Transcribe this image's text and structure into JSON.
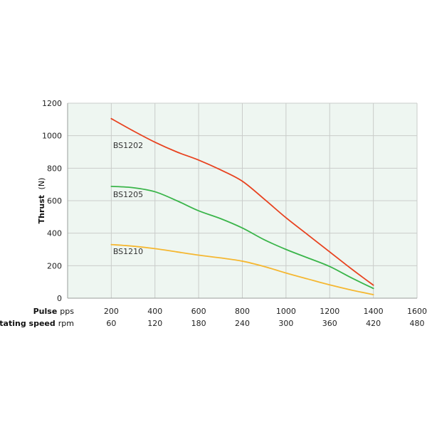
{
  "chart_data": {
    "type": "line",
    "ylabel_bold": "Thrust",
    "ylabel_unit": "(N)",
    "ylim": [
      0,
      1200
    ],
    "y_ticks": [
      "1200",
      "1000",
      "800",
      "600",
      "400",
      "200",
      "0"
    ],
    "x_rows": [
      {
        "title_bold": "Pulse",
        "unit": "pps",
        "ticks": [
          "200",
          "400",
          "600",
          "800",
          "1000",
          "1200",
          "1400",
          "1600"
        ]
      },
      {
        "title_bold": "Rotating speed",
        "unit": "rpm",
        "ticks": [
          "60",
          "120",
          "180",
          "240",
          "300",
          "360",
          "420",
          "480"
        ]
      }
    ],
    "xlim": [
      0,
      1600
    ],
    "grid": true,
    "background_color": "#eef6f1",
    "series": [
      {
        "name": "BS1202",
        "color": "#e8421f",
        "points": [
          [
            200,
            1105
          ],
          [
            300,
            1030
          ],
          [
            400,
            960
          ],
          [
            500,
            900
          ],
          [
            600,
            850
          ],
          [
            700,
            790
          ],
          [
            800,
            720
          ],
          [
            900,
            610
          ],
          [
            1000,
            495
          ],
          [
            1100,
            390
          ],
          [
            1200,
            285
          ],
          [
            1300,
            180
          ],
          [
            1400,
            80
          ]
        ]
      },
      {
        "name": "BS1205",
        "color": "#3ab54a",
        "points": [
          [
            200,
            688
          ],
          [
            300,
            680
          ],
          [
            400,
            655
          ],
          [
            500,
            600
          ],
          [
            600,
            538
          ],
          [
            700,
            490
          ],
          [
            800,
            432
          ],
          [
            900,
            360
          ],
          [
            1000,
            300
          ],
          [
            1100,
            248
          ],
          [
            1200,
            195
          ],
          [
            1300,
            125
          ],
          [
            1400,
            60
          ]
        ]
      },
      {
        "name": "BS1210",
        "color": "#f5b731",
        "points": [
          [
            200,
            330
          ],
          [
            300,
            320
          ],
          [
            400,
            305
          ],
          [
            500,
            285
          ],
          [
            600,
            265
          ],
          [
            700,
            248
          ],
          [
            800,
            228
          ],
          [
            900,
            195
          ],
          [
            1000,
            155
          ],
          [
            1100,
            118
          ],
          [
            1200,
            82
          ],
          [
            1300,
            50
          ],
          [
            1400,
            22
          ]
        ]
      }
    ]
  }
}
